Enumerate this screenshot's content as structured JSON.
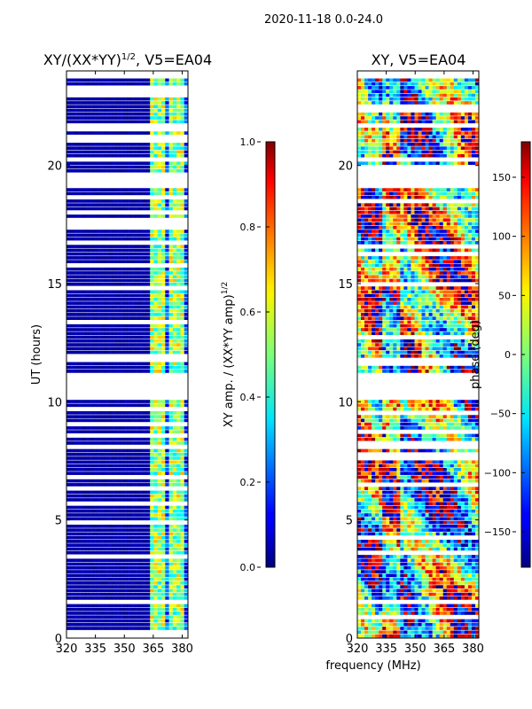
{
  "suptitle": "2020-11-18 0.0-24.0",
  "colors": {
    "background": "#ffffff",
    "ink": "#000000",
    "masked_row": "#ffffff",
    "low_amp": "#00008b"
  },
  "chart_data": [
    {
      "type": "heatmap",
      "id": "amplitude",
      "title": "XY/(XX*YY)",
      "title_exponent": "1/2",
      "title_suffix": ", V5=EA04",
      "xlabel": "",
      "ylabel": "UT (hours)",
      "xlim": [
        320,
        383
      ],
      "ylim": [
        0,
        24
      ],
      "xticks": [
        320,
        335,
        350,
        365,
        380
      ],
      "yticks": [
        0,
        5,
        10,
        15,
        20
      ],
      "bright_channels_mhz": [
        364,
        367,
        369,
        371,
        374,
        377,
        379
      ],
      "gaps_hours": [
        [
          10.0,
          11.0
        ],
        [
          11.55,
          11.85
        ],
        [
          19.0,
          19.6
        ],
        [
          20.1,
          20.3
        ],
        [
          21.4,
          21.6
        ],
        [
          22.8,
          23.0
        ],
        [
          23.6,
          24.0
        ]
      ],
      "colorbar": {
        "label": "XY amp. / (XX*YY amp)",
        "label_exponent": "1/2",
        "range": [
          0.0,
          1.0
        ],
        "ticks": [
          "0.0",
          "0.2",
          "0.4",
          "0.6",
          "0.8",
          "1.0"
        ],
        "colormap": "jet"
      }
    },
    {
      "type": "heatmap",
      "id": "phase",
      "title": "XY, V5=EA04",
      "xlabel": "frequency (MHz)",
      "ylabel": "",
      "xlim": [
        320,
        383
      ],
      "ylim": [
        0,
        24
      ],
      "xticks": [
        320,
        335,
        350,
        365,
        380
      ],
      "yticks": [
        0,
        5,
        10,
        15,
        20
      ],
      "gaps_hours": [
        [
          10.0,
          11.0
        ],
        [
          19.0,
          19.6
        ],
        [
          20.1,
          20.3
        ],
        [
          23.6,
          24.0
        ]
      ],
      "colorbar": {
        "label": "phase (deg)",
        "range": [
          -180,
          180
        ],
        "ticks": [
          "−150",
          "−100",
          "−50",
          "0",
          "50",
          "100",
          "150"
        ],
        "tick_values": [
          -150,
          -100,
          -50,
          0,
          50,
          100,
          150
        ],
        "colormap": "jet"
      }
    }
  ]
}
